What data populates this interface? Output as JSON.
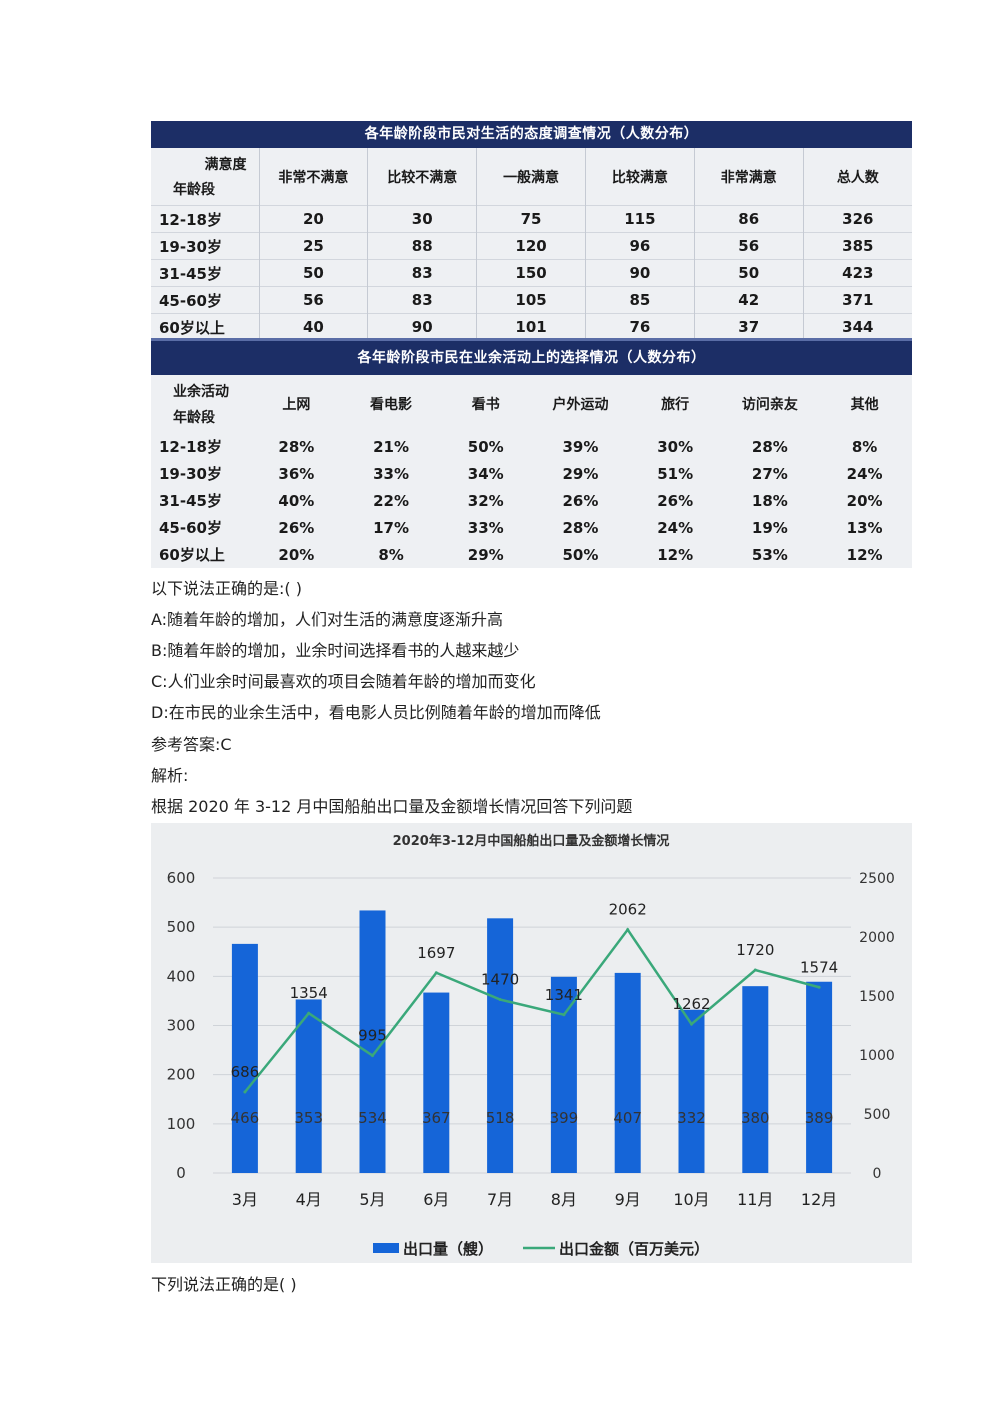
{
  "table1": {
    "title": "各年龄阶段市民对生活的态度调查情况（人数分布）",
    "corner_top": "满意度",
    "corner_bottom": "年龄段",
    "headers": [
      "非常不满意",
      "比较不满意",
      "一般满意",
      "比较满意",
      "非常满意",
      "总人数"
    ],
    "rows": [
      [
        "12-18岁",
        "20",
        "30",
        "75",
        "115",
        "86",
        "326"
      ],
      [
        "19-30岁",
        "25",
        "88",
        "120",
        "96",
        "56",
        "385"
      ],
      [
        "31-45岁",
        "50",
        "83",
        "150",
        "90",
        "50",
        "423"
      ],
      [
        "45-60岁",
        "56",
        "83",
        "105",
        "85",
        "42",
        "371"
      ],
      [
        "60岁以上",
        "40",
        "90",
        "101",
        "76",
        "37",
        "344"
      ]
    ]
  },
  "table2": {
    "title": "各年龄阶段市民在业余活动上的选择情况（人数分布）",
    "corner_top": "业余活动",
    "corner_bottom": "年龄段",
    "headers": [
      "上网",
      "看电影",
      "看书",
      "户外运动",
      "旅行",
      "访问亲友",
      "其他"
    ],
    "rows": [
      [
        "12-18岁",
        "28%",
        "21%",
        "50%",
        "39%",
        "30%",
        "28%",
        "8%"
      ],
      [
        "19-30岁",
        "36%",
        "33%",
        "34%",
        "29%",
        "51%",
        "27%",
        "24%"
      ],
      [
        "31-45岁",
        "40%",
        "22%",
        "32%",
        "26%",
        "26%",
        "18%",
        "20%"
      ],
      [
        "45-60岁",
        "26%",
        "17%",
        "33%",
        "28%",
        "24%",
        "19%",
        "13%"
      ],
      [
        "60岁以上",
        "20%",
        "8%",
        "29%",
        "50%",
        "12%",
        "53%",
        "12%"
      ]
    ]
  },
  "question1": {
    "prompt": "以下说法正确的是:(  )",
    "option_a": "A:随着年龄的增加，人们对生活的满意度逐渐升高",
    "option_b": "B:随着年龄的增加，业余时间选择看书的人越来越少",
    "option_c": "C:人们业余时间最喜欢的项目会随着年龄的增加而变化",
    "option_d": "D:在市民的业余生活中，看电影人员比例随着年龄的增加而降低",
    "answer": "参考答案:C",
    "analysis": "解析:"
  },
  "intro2": "根据 2020 年 3-12 月中国船舶出口量及金额增长情况回答下列问题",
  "question2": {
    "prompt": "下列说法正确的是(  )"
  },
  "chart_data": {
    "type": "bar",
    "title": "2020年3-12月中国船舶出口量及金额增长情况",
    "categories": [
      "3月",
      "4月",
      "5月",
      "6月",
      "7月",
      "8月",
      "9月",
      "10月",
      "11月",
      "12月"
    ],
    "series": [
      {
        "name": "出口量（艘）",
        "type": "bar",
        "axis": "left",
        "color": "#1565d8",
        "values": [
          466,
          353,
          534,
          367,
          518,
          399,
          407,
          332,
          380,
          389
        ]
      },
      {
        "name": "出口金额（百万美元）",
        "type": "line",
        "axis": "right",
        "color": "#3aa87a",
        "values": [
          686,
          1354,
          995,
          1697,
          1470,
          1341,
          2062,
          1262,
          1720,
          1574
        ]
      }
    ],
    "ylim_left": [
      0,
      600
    ],
    "yticks_left": [
      0,
      100,
      200,
      300,
      400,
      500,
      600
    ],
    "ylim_right": [
      0,
      2500
    ],
    "yticks_right": [
      0,
      500,
      1000,
      1500,
      2000,
      2500
    ],
    "legend_position": "bottom",
    "grid": true
  }
}
